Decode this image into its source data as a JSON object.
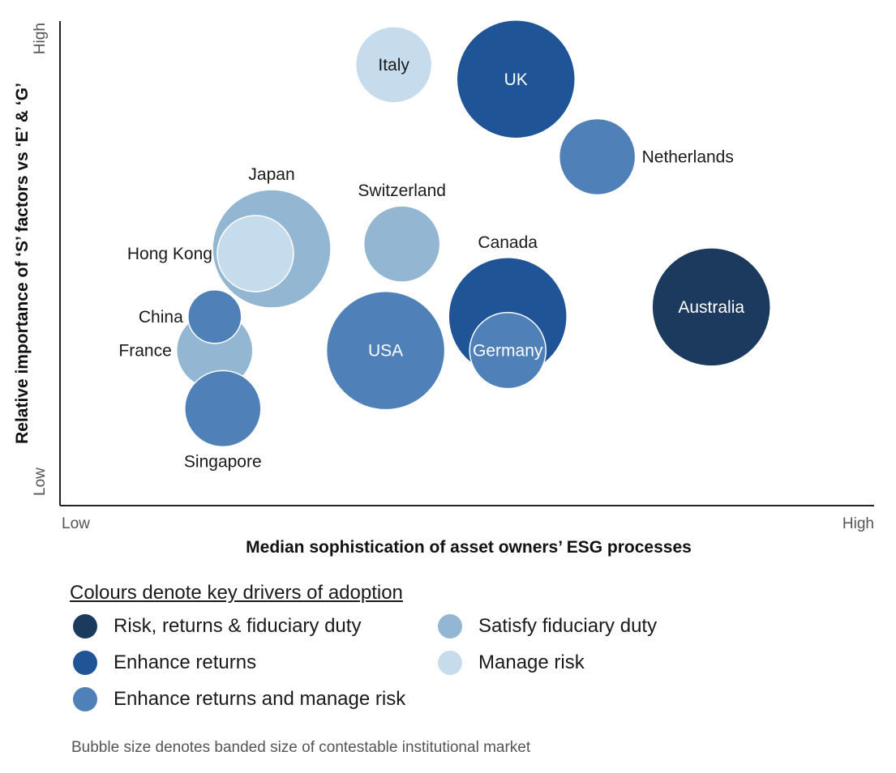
{
  "chart_data": {
    "type": "bubble",
    "xlabel": "Median sophistication of asset owners’ ESG processes",
    "ylabel": "Relative importance of ‘S’ factors vs ‘E’ & ‘G’",
    "xlim": [
      0,
      100
    ],
    "ylim": [
      0,
      100
    ],
    "x_ticks": {
      "low": "Low",
      "high": "High"
    },
    "y_ticks": {
      "low": "Low",
      "high": "High"
    },
    "grid": false,
    "categories": [
      {
        "key": "rrf",
        "name": "Risk, returns & fiduciary duty",
        "color": "#1c3a5e"
      },
      {
        "key": "er",
        "name": "Enhance returns",
        "color": "#1f5596"
      },
      {
        "key": "erm",
        "name": "Enhance returns and manage risk",
        "color": "#4f81b8"
      },
      {
        "key": "sfd",
        "name": "Satisfy fiduciary duty",
        "color": "#93b7d3"
      },
      {
        "key": "mr",
        "name": "Manage risk",
        "color": "#c6dced"
      }
    ],
    "points": [
      {
        "label": "Japan",
        "x": 26,
        "y": 53,
        "size": 3,
        "category": "sfd",
        "label_pos": "above"
      },
      {
        "label": "Hong Kong",
        "x": 24,
        "y": 52,
        "size": 2,
        "category": "mr",
        "label_pos": "left"
      },
      {
        "label": "Italy",
        "x": 41,
        "y": 91,
        "size": 2,
        "category": "mr",
        "label_pos": "inside"
      },
      {
        "label": "UK",
        "x": 56,
        "y": 88,
        "size": 3,
        "category": "er",
        "label_pos": "inside"
      },
      {
        "label": "Netherlands",
        "x": 66,
        "y": 72,
        "size": 2,
        "category": "erm",
        "label_pos": "right"
      },
      {
        "label": "Switzerland",
        "x": 42,
        "y": 54,
        "size": 2,
        "category": "sfd",
        "label_pos": "above"
      },
      {
        "label": "Canada",
        "x": 55,
        "y": 39,
        "size": 3,
        "category": "er",
        "label_pos": "above"
      },
      {
        "label": "Australia",
        "x": 80,
        "y": 41,
        "size": 3,
        "category": "rrf",
        "label_pos": "inside"
      },
      {
        "label": "France",
        "x": 19,
        "y": 32,
        "size": 2,
        "category": "sfd",
        "label_pos": "left"
      },
      {
        "label": "China",
        "x": 19,
        "y": 39,
        "size": 1,
        "category": "erm",
        "label_pos": "left"
      },
      {
        "label": "Singapore",
        "x": 20,
        "y": 20,
        "size": 2,
        "category": "erm",
        "label_pos": "below"
      },
      {
        "label": "USA",
        "x": 40,
        "y": 32,
        "size": 3,
        "category": "erm",
        "label_pos": "inside"
      },
      {
        "label": "Germany",
        "x": 55,
        "y": 32,
        "size": 2,
        "category": "erm",
        "label_pos": "inside"
      }
    ]
  },
  "legend": {
    "title": "Colours denote key drivers of adoption",
    "items": [
      {
        "label": "Risk, returns & fiduciary duty",
        "color": "#1c3a5e"
      },
      {
        "label": "Enhance returns",
        "color": "#1f5596"
      },
      {
        "label": "Enhance returns and manage risk",
        "color": "#4f81b8"
      },
      {
        "label": "Satisfy fiduciary duty",
        "color": "#93b7d3"
      },
      {
        "label": "Manage risk",
        "color": "#c6dced"
      }
    ]
  },
  "note": "Bubble size denotes banded size of contestable institutional market"
}
